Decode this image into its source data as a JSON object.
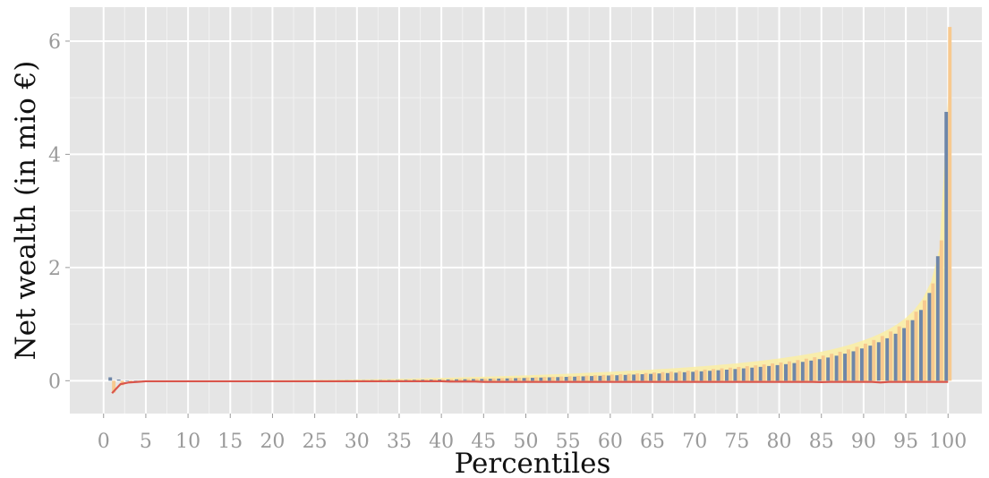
{
  "chart_data": {
    "type": "bar",
    "title": "",
    "xlabel": "Percentiles",
    "ylabel": "Net wealth (in mio €)",
    "x": [
      1,
      2,
      3,
      4,
      5,
      6,
      7,
      8,
      9,
      10,
      11,
      12,
      13,
      14,
      15,
      16,
      17,
      18,
      19,
      20,
      21,
      22,
      23,
      24,
      25,
      26,
      27,
      28,
      29,
      30,
      31,
      32,
      33,
      34,
      35,
      36,
      37,
      38,
      39,
      40,
      41,
      42,
      43,
      44,
      45,
      46,
      47,
      48,
      49,
      50,
      51,
      52,
      53,
      54,
      55,
      56,
      57,
      58,
      59,
      60,
      61,
      62,
      63,
      64,
      65,
      66,
      67,
      68,
      69,
      70,
      71,
      72,
      73,
      74,
      75,
      76,
      77,
      78,
      79,
      80,
      81,
      82,
      83,
      84,
      85,
      86,
      87,
      88,
      89,
      90,
      91,
      92,
      93,
      94,
      95,
      96,
      97,
      98,
      99,
      100
    ],
    "xticks": [
      "0",
      "5",
      "10",
      "15",
      "20",
      "25",
      "30",
      "35",
      "40",
      "45",
      "50",
      "55",
      "60",
      "65",
      "70",
      "75",
      "80",
      "85",
      "90",
      "95",
      "100"
    ],
    "yticks": [
      "0",
      "2",
      "4",
      "6"
    ],
    "xlim": [
      -4,
      104
    ],
    "ylim": [
      -0.58,
      6.6
    ],
    "grid": true,
    "series": [
      {
        "color": "#6e86a8",
        "style": "bar",
        "values": [
          0.06,
          0.02,
          0.001,
          0.001,
          0.001,
          0.001,
          0.001,
          0.001,
          0.001,
          0.001,
          0.001,
          0.001,
          0.001,
          0.001,
          0.001,
          0.002,
          0.002,
          0.002,
          0.003,
          0.003,
          0.003,
          0.004,
          0.004,
          0.005,
          0.005,
          0.006,
          0.006,
          0.007,
          0.008,
          0.008,
          0.009,
          0.01,
          0.011,
          0.012,
          0.013,
          0.015,
          0.016,
          0.018,
          0.019,
          0.021,
          0.023,
          0.025,
          0.027,
          0.03,
          0.032,
          0.035,
          0.038,
          0.041,
          0.045,
          0.048,
          0.052,
          0.056,
          0.06,
          0.064,
          0.068,
          0.072,
          0.077,
          0.082,
          0.087,
          0.092,
          0.097,
          0.103,
          0.109,
          0.115,
          0.121,
          0.128,
          0.135,
          0.142,
          0.15,
          0.158,
          0.166,
          0.175,
          0.185,
          0.195,
          0.206,
          0.218,
          0.231,
          0.245,
          0.26,
          0.276,
          0.293,
          0.312,
          0.333,
          0.356,
          0.381,
          0.41,
          0.442,
          0.478,
          0.52,
          0.57,
          0.62,
          0.68,
          0.75,
          0.83,
          0.93,
          1.07,
          1.25,
          1.55,
          2.2,
          4.75
        ]
      },
      {
        "color": "#f7c98f",
        "style": "bar",
        "values": [
          -0.21,
          -0.08,
          -0.02,
          0.001,
          0.001,
          0.001,
          0.001,
          0.001,
          0.001,
          0.001,
          0.001,
          0.001,
          0.001,
          0.001,
          0.001,
          0.002,
          0.002,
          0.002,
          0.003,
          0.003,
          0.004,
          0.004,
          0.005,
          0.005,
          0.006,
          0.006,
          0.007,
          0.008,
          0.009,
          0.01,
          0.011,
          0.012,
          0.013,
          0.014,
          0.016,
          0.017,
          0.019,
          0.021,
          0.023,
          0.025,
          0.027,
          0.03,
          0.032,
          0.035,
          0.038,
          0.042,
          0.045,
          0.049,
          0.053,
          0.057,
          0.061,
          0.066,
          0.07,
          0.075,
          0.08,
          0.085,
          0.091,
          0.097,
          0.103,
          0.109,
          0.115,
          0.122,
          0.129,
          0.136,
          0.144,
          0.152,
          0.16,
          0.168,
          0.177,
          0.187,
          0.197,
          0.207,
          0.218,
          0.23,
          0.243,
          0.257,
          0.272,
          0.288,
          0.305,
          0.323,
          0.343,
          0.365,
          0.389,
          0.415,
          0.444,
          0.476,
          0.512,
          0.553,
          0.6,
          0.655,
          0.72,
          0.79,
          0.87,
          0.96,
          1.07,
          1.22,
          1.42,
          1.72,
          2.48,
          6.25
        ]
      },
      {
        "color": "#fbeea2",
        "style": "area",
        "values": [
          0,
          0,
          0,
          0,
          0.001,
          0.001,
          0.001,
          0.001,
          0.002,
          0.002,
          0.002,
          0.003,
          0.003,
          0.004,
          0.004,
          0.005,
          0.005,
          0.006,
          0.007,
          0.008,
          0.009,
          0.01,
          0.011,
          0.012,
          0.013,
          0.015,
          0.016,
          0.018,
          0.02,
          0.022,
          0.024,
          0.026,
          0.028,
          0.031,
          0.034,
          0.037,
          0.04,
          0.043,
          0.047,
          0.05,
          0.054,
          0.058,
          0.062,
          0.066,
          0.07,
          0.075,
          0.08,
          0.085,
          0.09,
          0.095,
          0.1,
          0.106,
          0.112,
          0.118,
          0.124,
          0.13,
          0.137,
          0.144,
          0.151,
          0.158,
          0.165,
          0.173,
          0.181,
          0.189,
          0.197,
          0.206,
          0.215,
          0.225,
          0.235,
          0.246,
          0.257,
          0.269,
          0.281,
          0.294,
          0.308,
          0.323,
          0.339,
          0.356,
          0.374,
          0.393,
          0.414,
          0.436,
          0.46,
          0.486,
          0.514,
          0.545,
          0.58,
          0.62,
          0.665,
          0.715,
          0.77,
          0.835,
          0.91,
          1.0,
          1.11,
          1.25,
          1.45,
          1.75,
          2.35,
          5.0
        ]
      },
      {
        "color": "#d9564c",
        "style": "line",
        "values": [
          -0.22,
          -0.06,
          -0.03,
          -0.02,
          -0.01,
          -0.01,
          -0.01,
          -0.01,
          -0.01,
          -0.01,
          -0.01,
          -0.01,
          -0.01,
          -0.01,
          -0.01,
          -0.01,
          -0.01,
          -0.01,
          -0.01,
          -0.01,
          -0.01,
          -0.01,
          -0.01,
          -0.01,
          -0.01,
          -0.01,
          -0.01,
          -0.01,
          -0.01,
          -0.01,
          -0.01,
          -0.01,
          -0.01,
          -0.01,
          -0.01,
          -0.01,
          -0.01,
          -0.01,
          -0.01,
          -0.01,
          -0.015,
          -0.015,
          -0.015,
          -0.015,
          -0.02,
          -0.02,
          -0.02,
          -0.02,
          -0.02,
          -0.02,
          -0.02,
          -0.02,
          -0.02,
          -0.02,
          -0.02,
          -0.02,
          -0.02,
          -0.02,
          -0.02,
          -0.02,
          -0.02,
          -0.02,
          -0.02,
          -0.02,
          -0.02,
          -0.02,
          -0.02,
          -0.02,
          -0.02,
          -0.02,
          -0.02,
          -0.02,
          -0.02,
          -0.02,
          -0.02,
          -0.02,
          -0.02,
          -0.02,
          -0.02,
          -0.02,
          -0.02,
          -0.02,
          -0.02,
          -0.02,
          -0.025,
          -0.02,
          -0.02,
          -0.02,
          -0.02,
          -0.02,
          -0.02,
          -0.03,
          -0.02,
          -0.02,
          -0.02,
          -0.02,
          -0.02,
          -0.02,
          -0.02,
          -0.02
        ]
      }
    ]
  }
}
